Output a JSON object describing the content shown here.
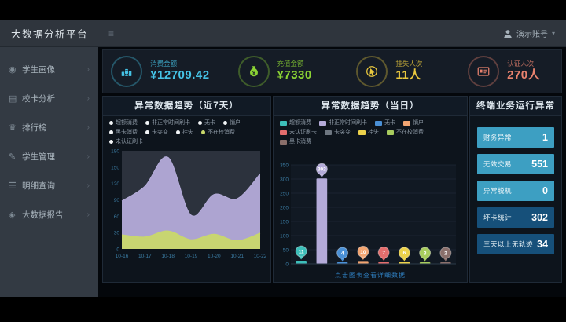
{
  "header": {
    "app_title": "大数据分析平台",
    "user_name": "演示账号"
  },
  "sidebar": {
    "items": [
      {
        "label": "学生画像",
        "icon": "student-portrait-icon"
      },
      {
        "label": "校卡分析",
        "icon": "card-analysis-icon"
      },
      {
        "label": "排行榜",
        "icon": "ranking-icon"
      },
      {
        "label": "学生管理",
        "icon": "student-manage-icon"
      },
      {
        "label": "明细查询",
        "icon": "detail-query-icon"
      },
      {
        "label": "大数据报告",
        "icon": "bigdata-report-icon"
      }
    ]
  },
  "kpis": [
    {
      "label": "消费金额",
      "value": "¥12709.42",
      "color": "#45c3e6",
      "icon": "coins-icon"
    },
    {
      "label": "充值金额",
      "value": "¥7330",
      "color": "#8bd334",
      "icon": "moneybag-icon"
    },
    {
      "label": "挂失人次",
      "value": "11人",
      "color": "#e9c83e",
      "icon": "hand-click-icon"
    },
    {
      "label": "认证人次",
      "value": "270人",
      "color": "#e8826e",
      "icon": "id-card-icon"
    }
  ],
  "stats_panel": {
    "title": "终端业务运行异常",
    "colors": {
      "highlight": "#3d9fc2",
      "normal": "#16507a"
    },
    "items": [
      {
        "label": "财务异常",
        "value": "1",
        "highlight": true
      },
      {
        "label": "无效交易",
        "value": "551",
        "highlight": true
      },
      {
        "label": "异常脱机",
        "value": "0",
        "highlight": true
      },
      {
        "label": "坏卡统计",
        "value": "302",
        "highlight": false
      },
      {
        "label": "三天以上无轨迹",
        "value": "34",
        "highlight": false
      }
    ]
  },
  "chart_data": [
    {
      "type": "area",
      "title": "异常数据趋势（近7天）",
      "x": [
        "10-16",
        "10-17",
        "10-18",
        "10-19",
        "10-20",
        "10-21",
        "10-22"
      ],
      "ylim": [
        0,
        180
      ],
      "y_ticks": [
        0,
        30,
        60,
        90,
        120,
        150,
        180
      ],
      "grid": false,
      "legend_position": "top",
      "legend": [
        {
          "label": "超额消费",
          "color": "#f2f5f7"
        },
        {
          "label": "非正常时间刷卡",
          "color": "#f2f5f7"
        },
        {
          "label": "无卡",
          "color": "#f2f5f7"
        },
        {
          "label": "销户",
          "color": "#f2f5f7"
        },
        {
          "label": "黑卡消费",
          "color": "#f2f5f7"
        },
        {
          "label": "卡突变",
          "color": "#f2f5f7"
        },
        {
          "label": "挂失",
          "color": "#f2f5f7"
        },
        {
          "label": "不在校消费",
          "color": "#c9d86b"
        },
        {
          "label": "未认证刷卡",
          "color": "#f2f5f7"
        }
      ],
      "series": [
        {
          "name": "非正常时间刷卡",
          "color": "#b4abd9",
          "values": [
            88,
            115,
            168,
            62,
            100,
            92,
            138
          ]
        },
        {
          "name": "不在校消费",
          "color": "#c9d86b",
          "values": [
            26,
            22,
            33,
            17,
            27,
            15,
            29
          ]
        }
      ]
    },
    {
      "type": "bar",
      "title": "异常数据趋势（当日）",
      "ylim": [
        0,
        350
      ],
      "y_ticks": [
        0,
        50,
        100,
        150,
        200,
        250,
        300,
        350
      ],
      "grid": true,
      "legend_position": "top",
      "legend": [
        {
          "label": "超额消费",
          "color": "#3dbfba"
        },
        {
          "label": "非正常时间刷卡",
          "color": "#b4abd9"
        },
        {
          "label": "无卡",
          "color": "#4a90d6"
        },
        {
          "label": "销户",
          "color": "#f2a572"
        },
        {
          "label": "未认证刷卡",
          "color": "#e36d6d"
        },
        {
          "label": "卡突变",
          "color": "#6e7781"
        },
        {
          "label": "挂失",
          "color": "#ecd24b"
        },
        {
          "label": "不在校消费",
          "color": "#a8cc5e"
        },
        {
          "label": "黑卡消费",
          "color": "#8a6f6b"
        }
      ],
      "categories": [
        "超额消费",
        "非正常时间刷卡",
        "无卡",
        "销户",
        "未认证刷卡",
        "挂失",
        "不在校消费",
        "黑卡消费"
      ],
      "values": [
        11,
        302,
        4,
        10,
        7,
        6,
        3,
        2
      ],
      "colors": [
        "#3dbfba",
        "#b4abd9",
        "#4a90d6",
        "#f2a572",
        "#e36d6d",
        "#ecd24b",
        "#a8cc5e",
        "#8a6f6b"
      ],
      "caption": "点击图表查看详细数据"
    }
  ]
}
